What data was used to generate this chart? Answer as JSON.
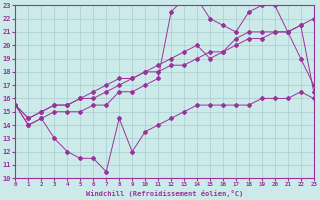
{
  "xlabel": "Windchill (Refroidissement éolien,°C)",
  "xlim": [
    0,
    23
  ],
  "ylim": [
    10,
    23
  ],
  "xticks": [
    0,
    1,
    2,
    3,
    4,
    5,
    6,
    7,
    8,
    9,
    10,
    11,
    12,
    13,
    14,
    15,
    16,
    17,
    18,
    19,
    20,
    21,
    22,
    23
  ],
  "yticks": [
    10,
    11,
    12,
    13,
    14,
    15,
    16,
    17,
    18,
    19,
    20,
    21,
    22,
    23
  ],
  "bg_color": "#cceaea",
  "grid_color": "#aacccc",
  "line_color": "#993399",
  "line_A_x": [
    0,
    1,
    2,
    3,
    4,
    5,
    6,
    7,
    8,
    9,
    10,
    11,
    12,
    13,
    14,
    15,
    16,
    17,
    18,
    19,
    20,
    21,
    22,
    23
  ],
  "line_A_y": [
    15.5,
    14.0,
    14.5,
    13.0,
    12.0,
    11.5,
    11.5,
    10.5,
    14.5,
    12.0,
    13.5,
    14.0,
    14.5,
    15.0,
    15.5,
    15.5,
    15.5,
    15.5,
    15.5,
    16.0,
    16.0,
    16.0,
    16.5,
    16.0
  ],
  "line_B_x": [
    0,
    1,
    2,
    3,
    4,
    5,
    6,
    7,
    8,
    9,
    10,
    11,
    12,
    13,
    14,
    15,
    16,
    17,
    18,
    19,
    20,
    21,
    22,
    23
  ],
  "line_B_y": [
    15.5,
    14.5,
    15.0,
    15.5,
    15.5,
    16.0,
    16.0,
    16.5,
    17.0,
    17.5,
    18.0,
    18.0,
    18.5,
    18.5,
    19.0,
    19.5,
    19.5,
    20.0,
    20.5,
    20.5,
    21.0,
    21.0,
    21.5,
    22.0
  ],
  "line_C_x": [
    0,
    1,
    2,
    3,
    4,
    5,
    6,
    7,
    8,
    9,
    10,
    11,
    12,
    13,
    14,
    15,
    16,
    17,
    18,
    19,
    20,
    21,
    22,
    23
  ],
  "line_C_y": [
    15.5,
    14.5,
    15.0,
    15.5,
    15.5,
    16.0,
    16.5,
    17.0,
    17.5,
    17.5,
    18.0,
    18.5,
    19.0,
    19.5,
    20.0,
    19.0,
    19.5,
    20.5,
    21.0,
    21.0,
    21.0,
    21.0,
    21.5,
    16.5
  ],
  "line_D_x": [
    0,
    1,
    2,
    3,
    4,
    5,
    6,
    7,
    8,
    9,
    10,
    11,
    12,
    13,
    14,
    15,
    16,
    17,
    18,
    19,
    20,
    21,
    22,
    23
  ],
  "line_D_y": [
    15.5,
    14.0,
    14.5,
    15.0,
    15.0,
    15.0,
    15.5,
    15.5,
    16.5,
    16.5,
    17.0,
    17.5,
    22.5,
    23.5,
    23.5,
    22.0,
    21.5,
    21.0,
    22.5,
    23.0,
    23.0,
    21.0,
    19.0,
    17.0
  ]
}
